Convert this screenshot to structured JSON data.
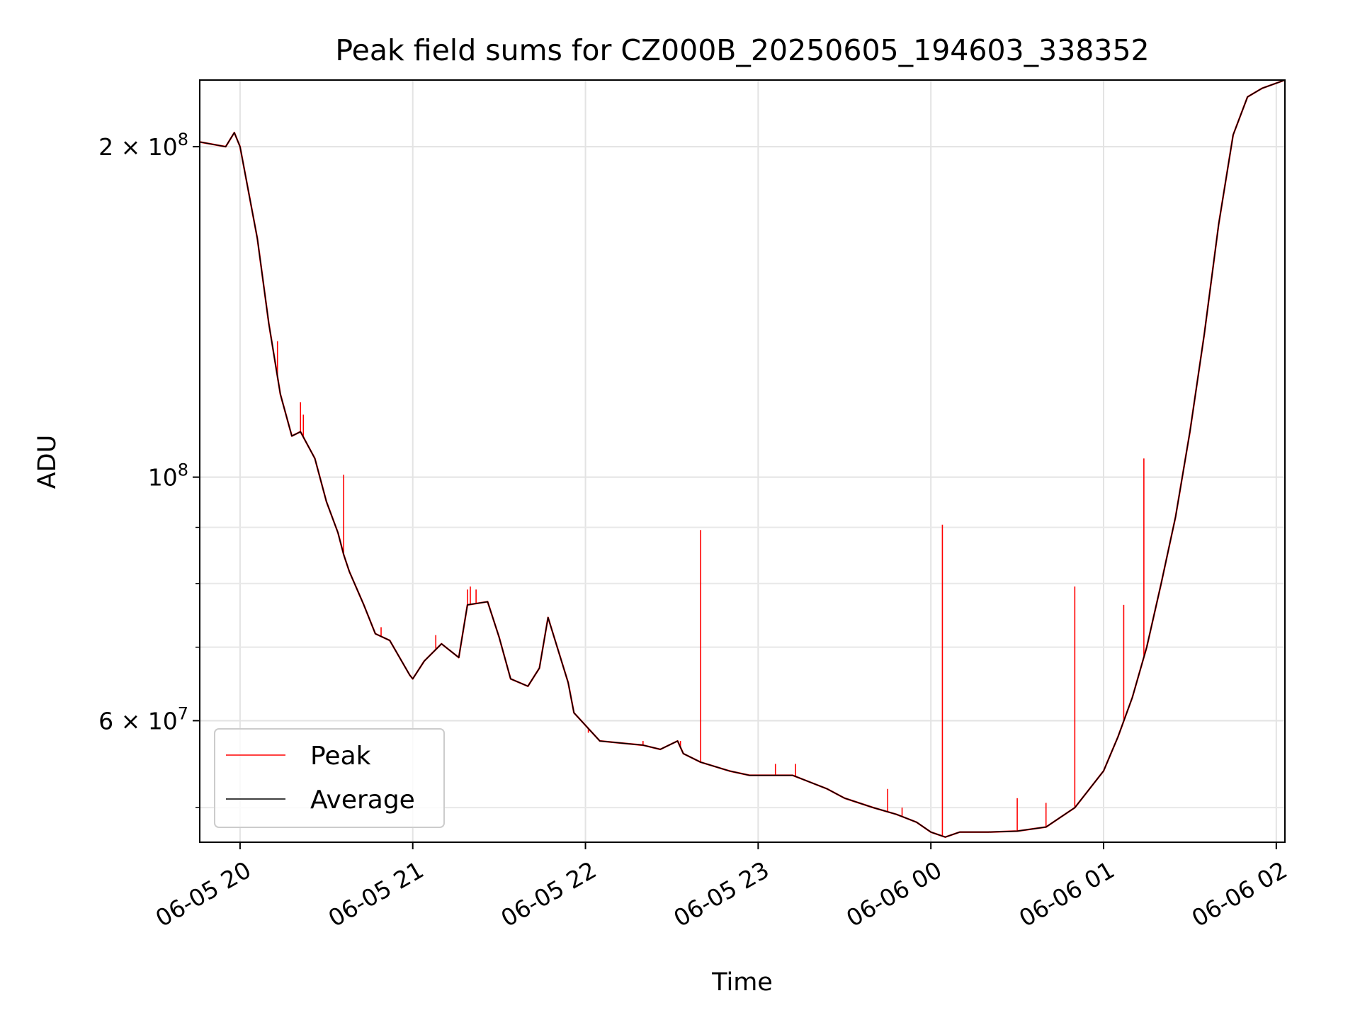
{
  "chart_data": {
    "type": "line",
    "title": "Peak field sums for CZ000B_20250605_194603_338352",
    "xlabel": "Time",
    "ylabel": "ADU",
    "yscale": "log",
    "ylim": [
      46500000,
      230000000
    ],
    "xlim": [
      "06-05 19:46",
      "06-06 02:03"
    ],
    "grid": true,
    "legend_placement": "lower-left",
    "x_ticks": [
      "06-05 20",
      "06-05 21",
      "06-05 22",
      "06-05 23",
      "06-06 00",
      "06-06 01",
      "06-06 02"
    ],
    "y_ticks": [
      {
        "value": 200000000,
        "mantissa": "2",
        "exponent": "8"
      },
      {
        "value": 100000000,
        "mantissa": "",
        "exponent": "8"
      },
      {
        "value": 60000000,
        "mantissa": "6",
        "exponent": "7"
      }
    ],
    "series": [
      {
        "name": "Peak",
        "color": "#ff0000",
        "spikes": [
          {
            "t": "06-05 20:13",
            "v": 133000000
          },
          {
            "t": "06-05 20:21",
            "v": 117000000
          },
          {
            "t": "06-05 20:22",
            "v": 114000000
          },
          {
            "t": "06-05 20:36",
            "v": 100500000
          },
          {
            "t": "06-05 20:49",
            "v": 73000000
          },
          {
            "t": "06-05 21:08",
            "v": 71800000
          },
          {
            "t": "06-05 21:19",
            "v": 79000000
          },
          {
            "t": "06-05 21:20",
            "v": 79500000
          },
          {
            "t": "06-05 21:22",
            "v": 79000000
          },
          {
            "t": "06-05 22:01",
            "v": 58500000
          },
          {
            "t": "06-05 22:20",
            "v": 57500000
          },
          {
            "t": "06-05 22:33",
            "v": 57500000
          },
          {
            "t": "06-05 22:40",
            "v": 89500000
          },
          {
            "t": "06-05 23:06",
            "v": 54800000
          },
          {
            "t": "06-05 23:13",
            "v": 54800000
          },
          {
            "t": "06-05 23:45",
            "v": 52000000
          },
          {
            "t": "06-05 23:50",
            "v": 50000000
          },
          {
            "t": "06-06 00:04",
            "v": 90500000
          },
          {
            "t": "06-06 00:30",
            "v": 51000000
          },
          {
            "t": "06-06 00:40",
            "v": 50500000
          },
          {
            "t": "06-06 00:50",
            "v": 79500000
          },
          {
            "t": "06-06 01:07",
            "v": 76500000
          },
          {
            "t": "06-06 01:14",
            "v": 104000000
          }
        ]
      },
      {
        "name": "Average",
        "color": "#000000",
        "x": [
          "06-05 19:46",
          "06-05 19:55",
          "06-05 19:58",
          "06-05 20:00",
          "06-05 20:06",
          "06-05 20:10",
          "06-05 20:14",
          "06-05 20:18",
          "06-05 20:21",
          "06-05 20:26",
          "06-05 20:30",
          "06-05 20:34",
          "06-05 20:36",
          "06-05 20:38",
          "06-05 20:43",
          "06-05 20:47",
          "06-05 20:52",
          "06-05 20:59",
          "06-05 21:00",
          "06-05 21:04",
          "06-05 21:10",
          "06-05 21:16",
          "06-05 21:19",
          "06-05 21:26",
          "06-05 21:30",
          "06-05 21:34",
          "06-05 21:40",
          "06-05 21:44",
          "06-05 21:47",
          "06-05 21:54",
          "06-05 21:56",
          "06-05 22:05",
          "06-05 22:20",
          "06-05 22:26",
          "06-05 22:32",
          "06-05 22:34",
          "06-05 22:40",
          "06-05 22:50",
          "06-05 22:57",
          "06-05 23:12",
          "06-05 23:24",
          "06-05 23:30",
          "06-05 23:40",
          "06-05 23:48",
          "06-05 23:55",
          "06-06 00:00",
          "06-06 00:05",
          "06-06 00:10",
          "06-06 00:20",
          "06-06 00:30",
          "06-06 00:40",
          "06-06 00:50",
          "06-06 01:00",
          "06-06 01:05",
          "06-06 01:10",
          "06-06 01:15",
          "06-06 01:20",
          "06-06 01:25",
          "06-06 01:30",
          "06-06 01:35",
          "06-06 01:40",
          "06-06 01:45",
          "06-06 01:50",
          "06-06 01:55",
          "06-06 02:03"
        ],
        "values": [
          202000000,
          200000000,
          206000000,
          200000000,
          165000000,
          138000000,
          119000000,
          109000000,
          110000000,
          104000000,
          95000000,
          89000000,
          85000000,
          82000000,
          76500000,
          72000000,
          71000000,
          66000000,
          65500000,
          68000000,
          70500000,
          68500000,
          76500000,
          77000000,
          71500000,
          65500000,
          64500000,
          67000000,
          74500000,
          65000000,
          61000000,
          57500000,
          57000000,
          56500000,
          57500000,
          56000000,
          55000000,
          54000000,
          53500000,
          53500000,
          52000000,
          51000000,
          50000000,
          49300000,
          48500000,
          47500000,
          47000000,
          47500000,
          47500000,
          47600000,
          48000000,
          50000000,
          54000000,
          58000000,
          63000000,
          70000000,
          80000000,
          92000000,
          110000000,
          135000000,
          170000000,
          205000000,
          222000000,
          226000000,
          230000000
        ]
      }
    ]
  }
}
